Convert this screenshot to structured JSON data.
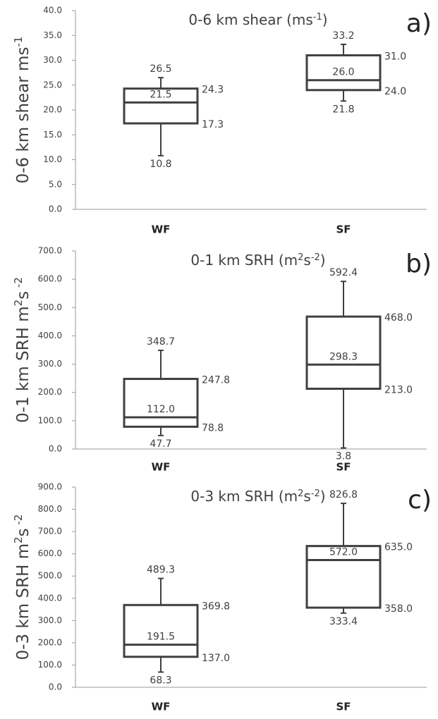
{
  "chart_data": [
    {
      "type": "box",
      "panel": "a)",
      "title": [
        {
          "text": "0-6 km shear (ms"
        },
        {
          "text": "-1",
          "sup": true
        },
        {
          "text": ")"
        }
      ],
      "ylabel": [
        {
          "text": "0-6 km shear ms"
        },
        {
          "text": "-1",
          "sup": true
        }
      ],
      "categories": [
        "WF",
        "SF"
      ],
      "color": "#404040",
      "ylim": [
        0,
        40
      ],
      "yticks": [
        {
          "value": 0,
          "label": "0.0"
        },
        {
          "value": 5,
          "label": "5.0"
        },
        {
          "value": 10,
          "label": "10.0"
        },
        {
          "value": 15,
          "label": "15.0"
        },
        {
          "value": 20,
          "label": "20.0"
        },
        {
          "value": 25,
          "label": "25.0"
        },
        {
          "value": 30,
          "label": "30.0"
        },
        {
          "value": 35,
          "label": "35.0"
        },
        {
          "value": 40,
          "label": "40.0"
        }
      ],
      "boxes": [
        {
          "min": 10.8,
          "q1": 17.3,
          "median": 21.5,
          "q3": 24.3,
          "max": 26.5,
          "value_labels": {
            "min": "10.8",
            "q1": "17.3",
            "median": "21.5",
            "q3": "24.3",
            "max": "26.5"
          }
        },
        {
          "min": 21.8,
          "q1": 24,
          "median": 26,
          "q3": 31,
          "max": 33.2,
          "value_labels": {
            "min": "21.8",
            "q1": "24.0",
            "median": "26.0",
            "q3": "31.0",
            "max": "33.2"
          }
        }
      ]
    },
    {
      "type": "box",
      "panel": "b)",
      "title": [
        {
          "text": "0-1 km SRH (m"
        },
        {
          "text": "2",
          "sup": true
        },
        {
          "text": "s"
        },
        {
          "text": "-2",
          "sup": true
        },
        {
          "text": ")"
        }
      ],
      "ylabel": [
        {
          "text": "0-1 km SRH m"
        },
        {
          "text": "2",
          "sup": true
        },
        {
          "text": "s"
        },
        {
          "text": " -2",
          "sup": true
        }
      ],
      "categories": [
        "WF",
        "SF"
      ],
      "color": "#404040",
      "ylim": [
        0,
        700
      ],
      "yticks": [
        {
          "value": 0,
          "label": "0.0"
        },
        {
          "value": 100,
          "label": "100.0"
        },
        {
          "value": 200,
          "label": "200.0"
        },
        {
          "value": 300,
          "label": "300.0"
        },
        {
          "value": 400,
          "label": "400.0"
        },
        {
          "value": 500,
          "label": "500.0"
        },
        {
          "value": 600,
          "label": "600.0"
        },
        {
          "value": 700,
          "label": "700.0"
        }
      ],
      "boxes": [
        {
          "min": 47.7,
          "q1": 78.8,
          "median": 112,
          "q3": 247.8,
          "max": 348.7,
          "value_labels": {
            "min": "47.7",
            "q1": "78.8",
            "median": "112.0",
            "q3": "247.8",
            "max": "348.7"
          }
        },
        {
          "min": 3.8,
          "q1": 213,
          "median": 298.3,
          "q3": 468,
          "max": 592.4,
          "value_labels": {
            "min": "3.8",
            "q1": "213.0",
            "median": "298.3",
            "q3": "468.0",
            "max": "592.4"
          }
        }
      ]
    },
    {
      "type": "box",
      "panel": "c)",
      "title": [
        {
          "text": "0-3 km SRH (m"
        },
        {
          "text": "2",
          "sup": true
        },
        {
          "text": "s"
        },
        {
          "text": "-2",
          "sup": true
        },
        {
          "text": ")"
        }
      ],
      "ylabel": [
        {
          "text": "0-3 km SRH m"
        },
        {
          "text": "2",
          "sup": true
        },
        {
          "text": "s"
        },
        {
          "text": " -2",
          "sup": true
        }
      ],
      "categories": [
        "WF",
        "SF"
      ],
      "color": "#404040",
      "ylim": [
        0,
        900
      ],
      "yticks": [
        {
          "value": 0,
          "label": "0.0"
        },
        {
          "value": 100,
          "label": "100.0"
        },
        {
          "value": 200,
          "label": "200.0"
        },
        {
          "value": 300,
          "label": "300.0"
        },
        {
          "value": 400,
          "label": "400.0"
        },
        {
          "value": 500,
          "label": "500.0"
        },
        {
          "value": 600,
          "label": "600.0"
        },
        {
          "value": 700,
          "label": "700.0"
        },
        {
          "value": 800,
          "label": "800.0"
        },
        {
          "value": 900,
          "label": "900.0"
        }
      ],
      "boxes": [
        {
          "min": 68.3,
          "q1": 137,
          "median": 191.5,
          "q3": 369.8,
          "max": 489.3,
          "value_labels": {
            "min": "68.3",
            "q1": "137.0",
            "median": "191.5",
            "q3": "369.8",
            "max": "489.3"
          }
        },
        {
          "min": 333.4,
          "q1": 358,
          "median": 572,
          "q3": 635,
          "max": 826.8,
          "value_labels": {
            "min": "333.4",
            "q1": "358.0",
            "median": "572.0",
            "q3": "635.0",
            "max": "826.8"
          }
        }
      ]
    }
  ]
}
